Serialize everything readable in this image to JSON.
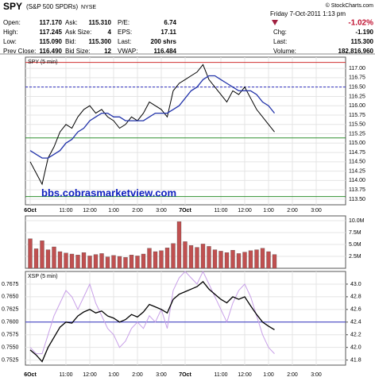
{
  "header": {
    "symbol": "SPY",
    "name": "(S&P 500 SPDRs)",
    "exchange": "NYSE",
    "date": "Friday 7-Oct-2011 1:13 pm",
    "credit": "© StockCharts.com",
    "change_pct": "-1.02%",
    "fields": [
      [
        [
          "Open:",
          "117.170"
        ],
        [
          "High:",
          "117.245"
        ],
        [
          "Low:",
          "115.090"
        ],
        [
          "Prev Close:",
          "116.490"
        ]
      ],
      [
        [
          "Ask:",
          "115.310"
        ],
        [
          "Ask Size:",
          "4"
        ],
        [
          "Bid:",
          "115.300"
        ],
        [
          "Bid Size:",
          "12"
        ]
      ],
      [
        [
          "P/E:",
          "6.74"
        ],
        [
          "EPS:",
          "17.11"
        ],
        [
          "Last:",
          "200 shrs"
        ],
        [
          "VWAP:",
          "116.484"
        ]
      ]
    ],
    "right_fields": [
      [
        "Chg:",
        "-1.190"
      ],
      [
        "Last:",
        "115.300"
      ],
      [
        "Volume:",
        "182,816,960"
      ]
    ]
  },
  "chart_data": [
    {
      "type": "line",
      "title": "SPY (5 min)",
      "annotation": "bbs.cobrasmarketview.com",
      "x": [
        0,
        3,
        6,
        9,
        12,
        15,
        18,
        21,
        24,
        27,
        30,
        33,
        36,
        39,
        42,
        45,
        48,
        51,
        54,
        57,
        60,
        63,
        66,
        69,
        72,
        75,
        78,
        81,
        84,
        87,
        90,
        93,
        96,
        99,
        102,
        105,
        108,
        111,
        114,
        117,
        120,
        123
      ],
      "series": [
        {
          "color": "#000000",
          "values": [
            114.5,
            114.2,
            113.9,
            114.6,
            114.9,
            115.3,
            115.5,
            115.4,
            115.7,
            115.9,
            116.0,
            115.8,
            115.9,
            115.7,
            115.6,
            115.4,
            115.5,
            115.7,
            115.6,
            115.8,
            116.1,
            116.0,
            115.9,
            115.7,
            116.4,
            116.6,
            116.7,
            116.8,
            116.9,
            117.1,
            116.7,
            116.5,
            116.3,
            116.1,
            116.4,
            116.3,
            116.5,
            116.2,
            115.9,
            115.7,
            115.5,
            115.3
          ]
        },
        {
          "color": "#2233aa",
          "values": [
            114.8,
            114.7,
            114.6,
            114.6,
            114.7,
            114.8,
            115.0,
            115.1,
            115.3,
            115.4,
            115.6,
            115.7,
            115.8,
            115.8,
            115.7,
            115.7,
            115.6,
            115.6,
            115.6,
            115.6,
            115.7,
            115.8,
            115.8,
            115.8,
            115.9,
            116.0,
            116.2,
            116.4,
            116.5,
            116.7,
            116.8,
            116.8,
            116.7,
            116.6,
            116.5,
            116.4,
            116.4,
            116.4,
            116.3,
            116.1,
            116.0,
            115.8
          ]
        }
      ],
      "hlines": [
        {
          "value": 117.16,
          "color": "#d03030"
        },
        {
          "value": 116.5,
          "color": "#3030c0",
          "dash": true
        },
        {
          "value": 115.14,
          "color": "#309030"
        },
        {
          "value": 113.57,
          "color": "#309030"
        }
      ],
      "xlim": [
        -2.4,
        158.8
      ],
      "xticks": [
        {
          "value": 0,
          "label": "6Oct"
        },
        {
          "value": 18,
          "label": "11:00"
        },
        {
          "value": 30,
          "label": "12:00"
        },
        {
          "value": 42,
          "label": "1:00"
        },
        {
          "value": 54,
          "label": "2:00"
        },
        {
          "value": 66,
          "label": "3:00"
        },
        {
          "value": 78,
          "label": "7Oct"
        },
        {
          "value": 96,
          "label": "11:00"
        },
        {
          "value": 108,
          "label": "12:00"
        },
        {
          "value": 120,
          "label": "1:00"
        },
        {
          "value": 132,
          "label": "2:00"
        },
        {
          "value": 144,
          "label": "3:00"
        }
      ],
      "ylim": [
        113.35,
        117.3
      ],
      "yticks": [
        {
          "value": 113.5,
          "label": "113.50"
        },
        {
          "value": 113.75,
          "label": "113.75"
        },
        {
          "value": 114,
          "label": "114.00"
        },
        {
          "value": 114.25,
          "label": "114.25"
        },
        {
          "value": 114.5,
          "label": "114.50"
        },
        {
          "value": 114.75,
          "label": "114.75"
        },
        {
          "value": 115,
          "label": "115.00"
        },
        {
          "value": 115.25,
          "label": "115.25"
        },
        {
          "value": 115.5,
          "label": "115.50"
        },
        {
          "value": 115.75,
          "label": "115.75"
        },
        {
          "value": 116,
          "label": "116.00"
        },
        {
          "value": 116.25,
          "label": "116.25"
        },
        {
          "value": 116.5,
          "label": "116.50"
        },
        {
          "value": 116.75,
          "label": "116.75"
        },
        {
          "value": 117,
          "label": "117.00"
        }
      ],
      "grid": true
    },
    {
      "type": "bar",
      "color": "#c05050",
      "x": [
        0,
        3,
        6,
        9,
        12,
        15,
        18,
        21,
        24,
        27,
        30,
        33,
        36,
        39,
        42,
        45,
        48,
        51,
        54,
        57,
        60,
        63,
        66,
        69,
        72,
        75,
        78,
        81,
        84,
        87,
        90,
        93,
        96,
        99,
        102,
        105,
        108,
        111,
        114,
        117,
        120,
        123
      ],
      "values": [
        6200000,
        4100000,
        5800000,
        3900000,
        4500000,
        3500000,
        3200000,
        3000000,
        2800000,
        3300000,
        2600000,
        2900000,
        3100000,
        2400000,
        2700000,
        2500000,
        2300000,
        2800000,
        2600000,
        3000000,
        4200000,
        3500000,
        3700000,
        4300000,
        5200000,
        9800000,
        5600000,
        4800000,
        4400000,
        5100000,
        4600000,
        3900000,
        3600000,
        3300000,
        3800000,
        3100000,
        3400000,
        3700000,
        3900000,
        4200000,
        3500000,
        2900000
      ],
      "xlim": [
        -2.4,
        158.8
      ],
      "ylim": [
        0,
        11000000
      ],
      "yticks": [
        {
          "value": 2500000,
          "label": "2.5M"
        },
        {
          "value": 5000000,
          "label": "5.0M"
        },
        {
          "value": 7500000,
          "label": "7.5M"
        },
        {
          "value": 10000000,
          "label": "10.0M"
        }
      ],
      "grid": true
    },
    {
      "type": "line",
      "title": "XSP (5 min)",
      "ytick_side": "left",
      "x": [
        0,
        3,
        6,
        9,
        12,
        15,
        18,
        21,
        24,
        27,
        30,
        33,
        36,
        39,
        42,
        45,
        48,
        51,
        54,
        57,
        60,
        63,
        66,
        69,
        72,
        75,
        78,
        81,
        84,
        87,
        90,
        93,
        96,
        99,
        102,
        105,
        108,
        111,
        114,
        117,
        120,
        123
      ],
      "series": [
        {
          "color": "#c8a0e8",
          "axis": "y2",
          "values": [
            42.0,
            41.9,
            41.9,
            42.2,
            42.5,
            42.7,
            42.9,
            42.8,
            42.6,
            42.8,
            43.0,
            42.7,
            42.5,
            42.3,
            42.2,
            42.0,
            42.1,
            42.3,
            42.4,
            42.3,
            42.5,
            42.4,
            42.6,
            42.3,
            42.9,
            43.1,
            43.2,
            43.1,
            43.0,
            43.2,
            43.0,
            42.8,
            42.6,
            42.4,
            42.7,
            42.9,
            43.0,
            42.8,
            42.5,
            42.2,
            42.0,
            41.9
          ]
        },
        {
          "color": "#000000",
          "values": [
            0.7545,
            0.7535,
            0.7522,
            0.755,
            0.757,
            0.759,
            0.76,
            0.7598,
            0.7612,
            0.762,
            0.7625,
            0.7618,
            0.7622,
            0.7612,
            0.7608,
            0.76,
            0.7605,
            0.7615,
            0.761,
            0.762,
            0.7635,
            0.763,
            0.7625,
            0.7618,
            0.7645,
            0.7655,
            0.766,
            0.7665,
            0.767,
            0.768,
            0.7665,
            0.7655,
            0.7645,
            0.7638,
            0.765,
            0.7645,
            0.765,
            0.7632,
            0.7615,
            0.76,
            0.7592,
            0.7585
          ]
        }
      ],
      "hlines": [
        {
          "value": 0.76,
          "color": "#3030c0"
        }
      ],
      "xlim": [
        -2.4,
        158.8
      ],
      "xticks": [
        {
          "value": 0,
          "label": "6Oct"
        },
        {
          "value": 18,
          "label": "11:00"
        },
        {
          "value": 30,
          "label": "12:00"
        },
        {
          "value": 42,
          "label": "1:00"
        },
        {
          "value": 54,
          "label": "2:00"
        },
        {
          "value": 66,
          "label": "3:00"
        },
        {
          "value": 78,
          "label": "7Oct"
        },
        {
          "value": 96,
          "label": "11:00"
        },
        {
          "value": 108,
          "label": "12:00"
        },
        {
          "value": 120,
          "label": "1:00"
        },
        {
          "value": 132,
          "label": "2:00"
        },
        {
          "value": 144,
          "label": "3:00"
        }
      ],
      "ylim": [
        0.7515,
        0.77
      ],
      "yticks": [
        {
          "value": 0.7525,
          "label": "0.7525"
        },
        {
          "value": 0.755,
          "label": "0.7550"
        },
        {
          "value": 0.7575,
          "label": "0.7575"
        },
        {
          "value": 0.76,
          "label": "0.7600"
        },
        {
          "value": 0.7625,
          "label": "0.7625"
        },
        {
          "value": 0.765,
          "label": "0.7650"
        },
        {
          "value": 0.7675,
          "label": "0.7675"
        }
      ],
      "y2lim": [
        41.72,
        43.2
      ],
      "y2ticks": [
        {
          "value": 41.8,
          "label": "41.8"
        },
        {
          "value": 42,
          "label": "42.0"
        },
        {
          "value": 42.2,
          "label": "42.2"
        },
        {
          "value": 42.4,
          "label": "42.4"
        },
        {
          "value": 42.6,
          "label": "42.6"
        },
        {
          "value": 42.8,
          "label": "42.8"
        },
        {
          "value": 43,
          "label": "43.0"
        }
      ],
      "grid": true
    }
  ]
}
